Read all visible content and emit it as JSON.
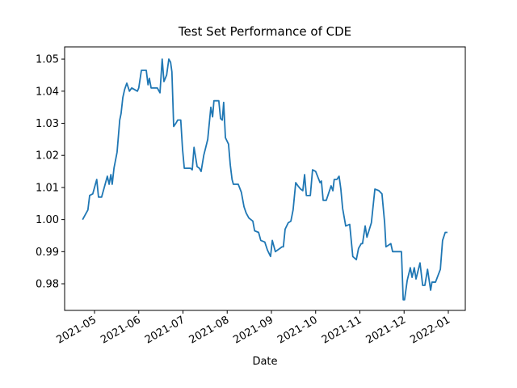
{
  "chart_data": {
    "type": "line",
    "title": "Test Set Performance of CDE",
    "xlabel": "Date",
    "x": [
      -0.27,
      -0.15,
      -0.11,
      -0.04,
      0.05,
      0.09,
      0.16,
      0.24,
      0.29,
      0.33,
      0.37,
      0.4,
      0.44,
      0.51,
      0.57,
      0.6,
      0.64,
      0.68,
      0.73,
      0.79,
      0.84,
      0.97,
      1.0,
      1.06,
      1.17,
      1.21,
      1.24,
      1.28,
      1.42,
      1.48,
      1.53,
      1.57,
      1.63,
      1.68,
      1.72,
      1.75,
      1.79,
      1.84,
      1.88,
      1.95,
      1.99,
      2.03,
      2.17,
      2.21,
      2.25,
      2.32,
      2.37,
      2.41,
      2.47,
      2.56,
      2.63,
      2.67,
      2.7,
      2.81,
      2.85,
      2.89,
      2.92,
      2.96,
      3.03,
      3.07,
      3.11,
      3.14,
      3.25,
      3.32,
      3.38,
      3.43,
      3.49,
      3.58,
      3.62,
      3.71,
      3.76,
      3.85,
      3.91,
      3.98,
      4.02,
      4.09,
      4.24,
      4.27,
      4.31,
      4.38,
      4.44,
      4.49,
      4.55,
      4.6,
      4.66,
      4.71,
      4.75,
      4.79,
      4.88,
      4.93,
      5.0,
      5.1,
      5.13,
      5.17,
      5.24,
      5.35,
      5.39,
      5.42,
      5.48,
      5.53,
      5.57,
      5.61,
      5.68,
      5.77,
      5.84,
      5.92,
      5.97,
      6.03,
      6.06,
      6.12,
      6.16,
      6.26,
      6.34,
      6.43,
      6.5,
      6.56,
      6.59,
      6.7,
      6.74,
      6.94,
      6.98,
      7.01,
      7.07,
      7.14,
      7.18,
      7.23,
      7.27,
      7.36,
      7.42,
      7.47,
      7.53,
      7.6,
      7.63,
      7.71,
      7.82,
      7.87,
      7.93,
      7.98
    ],
    "series": [
      {
        "color": "#1f77b4",
        "values": [
          1.0,
          1.003,
          1.0075,
          1.008,
          1.0125,
          1.007,
          1.007,
          1.011,
          1.0135,
          1.011,
          1.014,
          1.011,
          1.016,
          1.021,
          1.031,
          1.033,
          1.038,
          1.0405,
          1.0425,
          1.04,
          1.041,
          1.04,
          1.041,
          1.0465,
          1.0465,
          1.042,
          1.044,
          1.041,
          1.041,
          1.0395,
          1.05,
          1.043,
          1.045,
          1.05,
          1.049,
          1.046,
          1.029,
          1.03,
          1.031,
          1.031,
          1.022,
          1.016,
          1.016,
          1.0155,
          1.0225,
          1.0165,
          1.016,
          1.015,
          1.02,
          1.025,
          1.035,
          1.032,
          1.037,
          1.037,
          1.0315,
          1.031,
          1.0365,
          1.0255,
          1.0235,
          1.017,
          1.0125,
          1.011,
          1.011,
          1.0085,
          1.004,
          1.002,
          1.0005,
          0.9995,
          0.9965,
          0.996,
          0.9935,
          0.993,
          0.9905,
          0.9885,
          0.9935,
          0.99,
          0.9915,
          0.9915,
          0.997,
          0.999,
          0.9995,
          1.003,
          1.0115,
          1.0105,
          1.0095,
          1.009,
          1.014,
          1.0075,
          1.0075,
          1.0155,
          1.015,
          1.0115,
          1.012,
          1.006,
          1.006,
          1.0105,
          1.009,
          1.0125,
          1.0125,
          1.0135,
          1.0095,
          1.0035,
          0.998,
          0.9985,
          0.9885,
          0.9875,
          0.991,
          0.9925,
          0.9925,
          0.998,
          0.9945,
          0.999,
          1.0095,
          1.009,
          1.008,
          0.999,
          0.9915,
          0.9925,
          0.99,
          0.99,
          0.975,
          0.975,
          0.981,
          0.985,
          0.982,
          0.985,
          0.9815,
          0.9865,
          0.9795,
          0.9795,
          0.9845,
          0.978,
          0.9805,
          0.9805,
          0.9845,
          0.9935,
          0.996,
          0.996
        ]
      }
    ],
    "xlim": [
      -0.676,
      8.384
    ],
    "xticks": [
      {
        "value": 0,
        "label": "2021-05"
      },
      {
        "value": 1,
        "label": "2021-06"
      },
      {
        "value": 2,
        "label": "2021-07"
      },
      {
        "value": 3,
        "label": "2021-08"
      },
      {
        "value": 4,
        "label": "2021-09"
      },
      {
        "value": 5,
        "label": "2021-10"
      },
      {
        "value": 6,
        "label": "2021-11"
      },
      {
        "value": 7,
        "label": "2021-12"
      },
      {
        "value": 8,
        "label": "2022-01"
      }
    ],
    "ylim": [
      0.9717,
      1.0538
    ],
    "yticks": [
      0.98,
      0.99,
      {
        "value": 1,
        "label": "1.00"
      },
      1.01,
      1.02,
      1.03,
      1.04,
      1.05
    ],
    "grid": false
  }
}
